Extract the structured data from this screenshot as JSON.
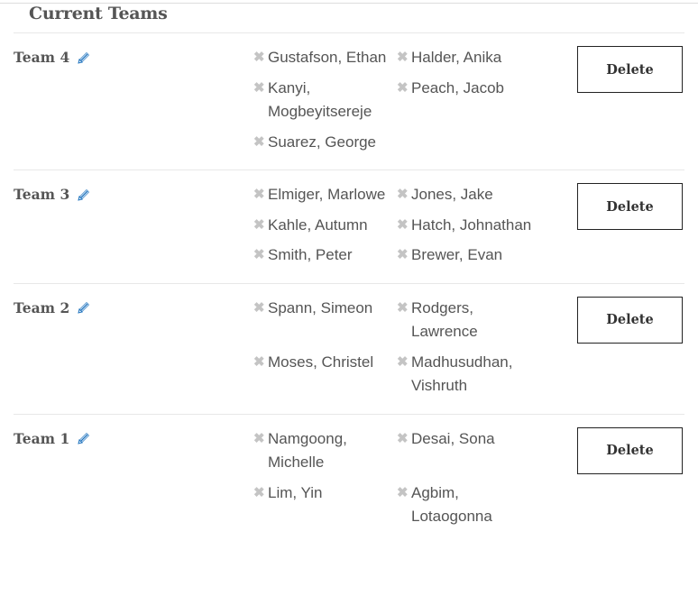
{
  "heading": "Current Teams",
  "delete_label": "Delete",
  "remove_icon": "✖",
  "accent": "#1e73be",
  "teams": [
    {
      "name": "Team 4",
      "members": [
        "Gustafson, Ethan",
        "Halder, Anika",
        "Kanyi, Mogbeyitsereje",
        "Peach, Jacob",
        "Suarez, George"
      ]
    },
    {
      "name": "Team 3",
      "members": [
        "Elmiger, Marlowe",
        "Jones, Jake",
        "Kahle, Autumn",
        "Hatch, Johnathan",
        "Smith, Peter",
        "Brewer, Evan"
      ]
    },
    {
      "name": "Team 2",
      "members": [
        "Spann, Simeon",
        "Rodgers, Lawrence",
        "Moses, Christel",
        "Madhusudhan, Vishruth"
      ]
    },
    {
      "name": "Team 1",
      "members": [
        "Namgoong, Michelle",
        "Desai, Sona",
        "Lim, Yin",
        "Agbim, Lotaogonna"
      ]
    }
  ]
}
